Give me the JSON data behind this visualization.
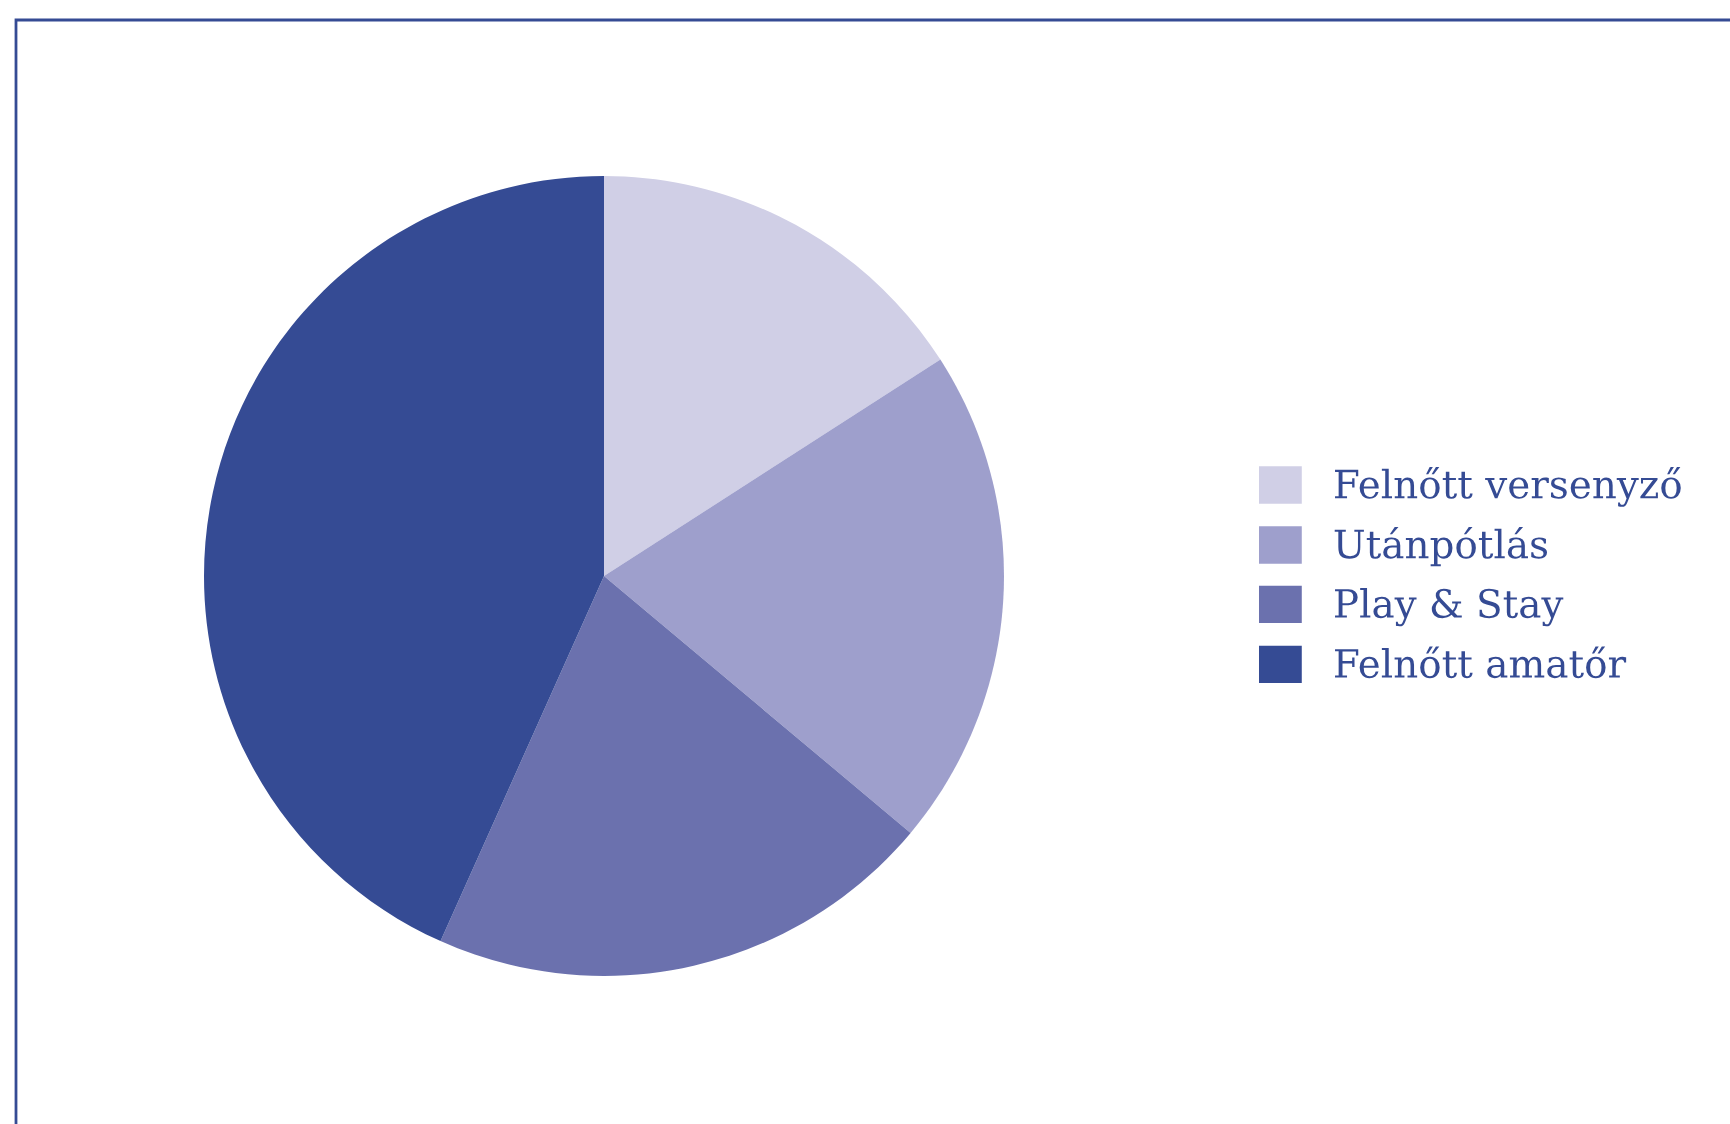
{
  "chart_data": {
    "type": "pie",
    "categories": [
      "Felnőtt versenyző",
      "Utánpótlás",
      "Play & Stay",
      "Felnőtt amatőr"
    ],
    "values": [
      15.9,
      20.2,
      20.6,
      43.3
    ],
    "colors": [
      "#d0cfe6",
      "#9e9fcc",
      "#6b71ae",
      "#354b94"
    ],
    "legend": "right"
  }
}
